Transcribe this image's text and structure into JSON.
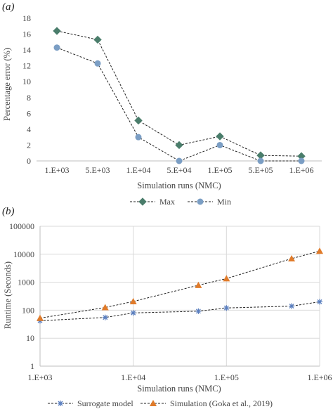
{
  "chart_data": [
    {
      "panel_label": "(a)",
      "type": "line",
      "categories": [
        "1.E+03",
        "5.E+03",
        "1.E+04",
        "5.E+04",
        "1.E+05",
        "5.E+05",
        "1.E+06"
      ],
      "series": [
        {
          "name": "Max",
          "values": [
            16.4,
            15.3,
            5.1,
            2.0,
            3.1,
            0.7,
            0.6
          ],
          "color": "#4a7d6b",
          "marker": "diamond"
        },
        {
          "name": "Min",
          "values": [
            14.3,
            12.3,
            3.0,
            0.0,
            2.0,
            0.0,
            0.0
          ],
          "color": "#7b9ec4",
          "marker": "circle"
        }
      ],
      "xlabel": "Simulation runs (NMC)",
      "ylabel": "Percentage error (%)",
      "ylim": [
        0,
        18
      ],
      "yticks": [
        "0",
        "2",
        "4",
        "6",
        "8",
        "10",
        "12",
        "14",
        "16",
        "18"
      ],
      "grid": false,
      "legend": "bottom"
    },
    {
      "panel_label": "(b)",
      "type": "line",
      "x": [
        1000,
        5000,
        10000,
        50000,
        100000,
        500000,
        1000000
      ],
      "x_scale": "log",
      "y_scale": "log",
      "xticks": [
        "1.E+03",
        "1.E+04",
        "1.E+05",
        "1.E+06"
      ],
      "yticks": [
        "1",
        "10",
        "100",
        "1000",
        "10000",
        "100000"
      ],
      "series": [
        {
          "name": "Surrogate model",
          "values": [
            42,
            55,
            80,
            92,
            120,
            140,
            200
          ],
          "color": "#5b7fbf",
          "marker": "asterisk"
        },
        {
          "name": "Simulation (Goka et al., 2019)",
          "values": [
            52,
            125,
            205,
            780,
            1350,
            7000,
            13000
          ],
          "color": "#e07b2a",
          "marker": "triangle"
        }
      ],
      "xlabel": "Simulation runs (NMC)",
      "ylabel": "Runtime (Seconds)",
      "ylim": [
        1,
        100000
      ],
      "grid": true,
      "legend": "bottom"
    }
  ]
}
